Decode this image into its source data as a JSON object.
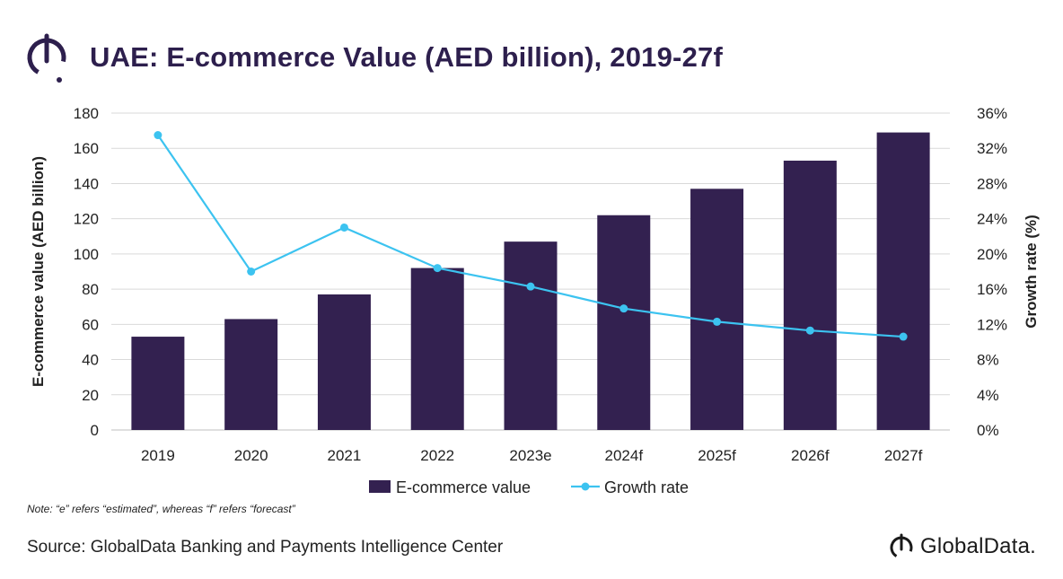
{
  "title": "UAE: E-commerce Value (AED billion), 2019-27f",
  "note": "Note: “e” refers “estimated”, whereas “f” refers “forecast”",
  "source": "Source: GlobalData Banking and Payments Intelligence Center",
  "brand": "GlobalData.",
  "colors": {
    "bar": "#332150",
    "line": "#3cc3f0",
    "title": "#2d1f4d"
  },
  "chart_data": {
    "type": "bar",
    "categories": [
      "2019",
      "2020",
      "2021",
      "2022",
      "2023e",
      "2024f",
      "2025f",
      "2026f",
      "2027f"
    ],
    "series": [
      {
        "name": "E-commerce value",
        "type": "bar",
        "axis": "left",
        "values": [
          53,
          63,
          77,
          92,
          107,
          122,
          137,
          153,
          169
        ]
      },
      {
        "name": "Growth rate",
        "type": "line",
        "axis": "right",
        "values": [
          33.5,
          18.0,
          23.0,
          18.4,
          16.3,
          13.8,
          12.3,
          11.3,
          10.6
        ]
      }
    ],
    "ylabel": "E-commerce value (AED billion)",
    "y2label": "Growth rate (%)",
    "ylim": [
      0,
      180
    ],
    "yticks": [
      "0",
      "20",
      "40",
      "60",
      "80",
      "100",
      "120",
      "140",
      "160",
      "180"
    ],
    "y2lim": [
      0,
      36
    ],
    "y2ticks": [
      "0%",
      "4%",
      "8%",
      "12%",
      "16%",
      "20%",
      "24%",
      "28%",
      "32%",
      "36%"
    ],
    "grid": true,
    "legend_position": "bottom"
  }
}
